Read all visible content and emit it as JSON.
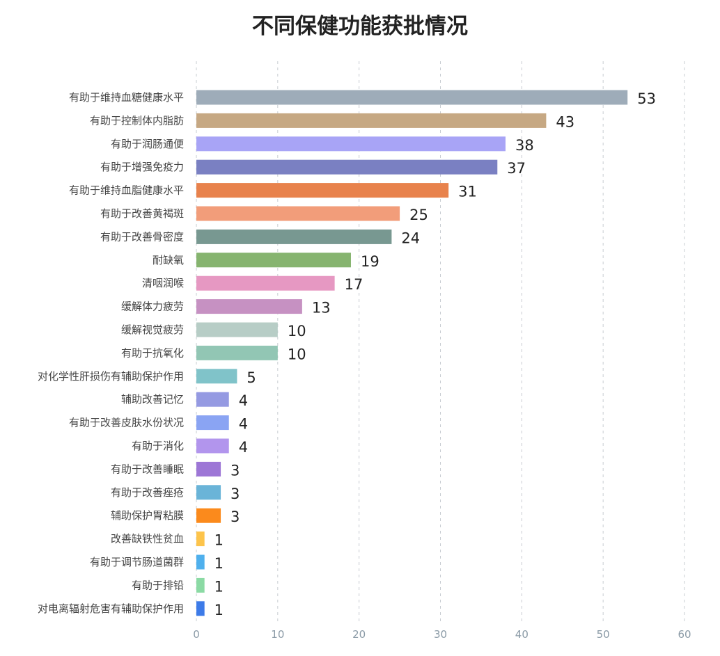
{
  "chart_data": {
    "type": "bar",
    "orientation": "horizontal",
    "title": "不同保健功能获批情况",
    "xlabel": "",
    "ylabel": "",
    "xlim": [
      0,
      60
    ],
    "xticks": [
      0,
      10,
      20,
      30,
      40,
      50,
      60
    ],
    "grid": true,
    "legend": "none",
    "categories": [
      "有助于维持血糖健康水平",
      "有助于控制体内脂肪",
      "有助于润肠通便",
      "有助于增强免疫力",
      "有助于维持血脂健康水平",
      "有助于改善黄褐斑",
      "有助于改善骨密度",
      "耐缺氧",
      "清咽润喉",
      "缓解体力疲劳",
      "缓解视觉疲劳",
      "有助于抗氧化",
      "对化学性肝损伤有辅助保护作用",
      "辅助改善记忆",
      "有助于改善皮肤水份状况",
      "有助于消化",
      "有助于改善睡眠",
      "有助于改善痤疮",
      "辅助保护胃粘膜",
      "改善缺铁性贫血",
      "有助于调节肠道菌群",
      "有助于排铅",
      "对电离辐射危害有辅助保护作用"
    ],
    "values": [
      53,
      43,
      38,
      37,
      31,
      25,
      24,
      19,
      17,
      13,
      10,
      10,
      5,
      4,
      4,
      4,
      3,
      3,
      3,
      1,
      1,
      1,
      1
    ],
    "colors": [
      "#9eacb9",
      "#c6a883",
      "#a8a4f6",
      "#7a80c2",
      "#e8824c",
      "#f29d7a",
      "#789891",
      "#86b46f",
      "#e698c2",
      "#c691c2",
      "#b7cdc6",
      "#92c6b4",
      "#80c3c9",
      "#959ae2",
      "#8aa4f3",
      "#b295ed",
      "#9d76d6",
      "#6ab4d8",
      "#fb8a1c",
      "#fdc44b",
      "#4fb0ed",
      "#8bdaa4",
      "#3d7be8"
    ]
  }
}
